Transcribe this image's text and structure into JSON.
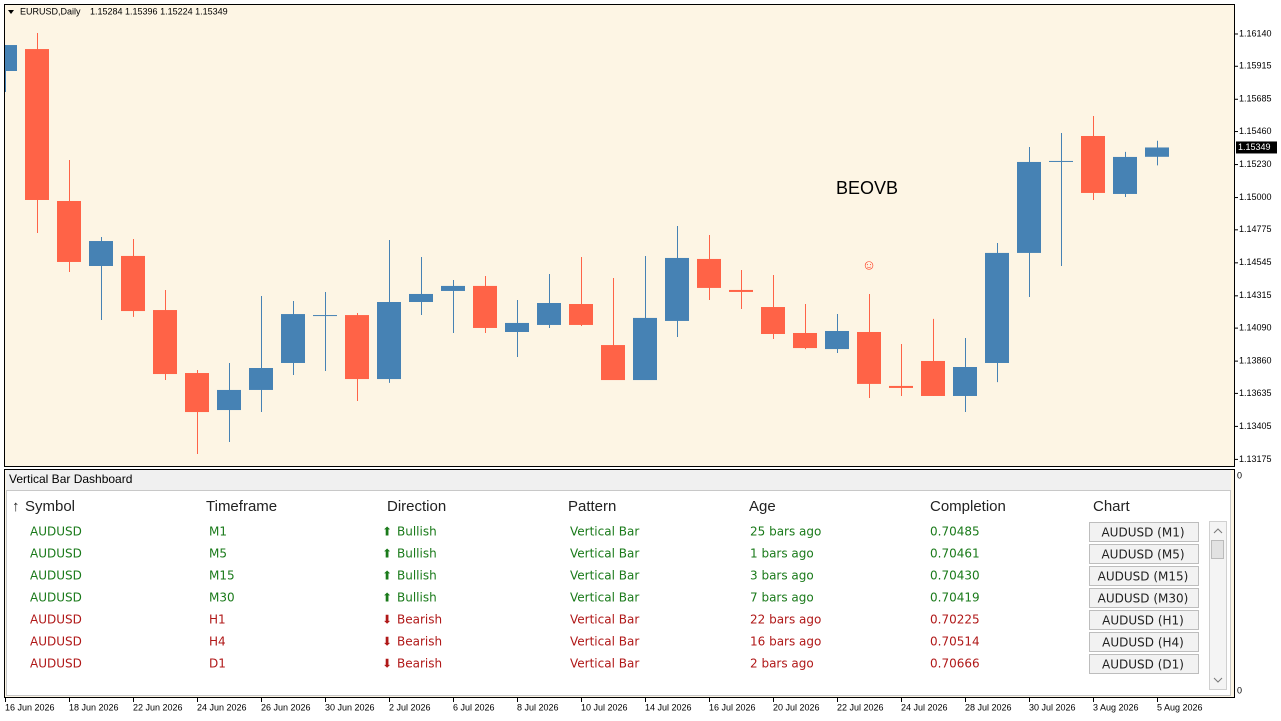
{
  "chart_data": {
    "type": "candlestick",
    "title": "EURUSD,Daily",
    "ohlc_label": "1.15284 1.15396 1.15224 1.15349",
    "annotation": "BEOVB",
    "marker_annotation": "☺",
    "marker_index": 27,
    "last_price_label": "1.15349",
    "up_color": "#4682b4",
    "down_color": "#ff6347",
    "marker_color": "#ff3b1f",
    "categories": [
      "16 Jun 2026",
      null,
      "18 Jun 2026",
      null,
      "22 Jun 2026",
      null,
      "24 Jun 2026",
      null,
      "26 Jun 2026",
      null,
      "30 Jun 2026",
      null,
      "2 Jul 2026",
      null,
      "6 Jul 2026",
      null,
      "8 Jul 2026",
      null,
      "10 Jul 2026",
      null,
      "14 Jul 2026",
      null,
      "16 Jul 2026",
      null,
      "20 Jul 2026",
      null,
      "22 Jul 2026",
      null,
      "24 Jul 2026",
      null,
      "28 Jul 2026",
      null,
      "30 Jul 2026",
      null,
      "3 Aug 2026",
      null,
      "5 Aug 2026"
    ],
    "open": [
      1.15882,
      1.16035,
      1.14976,
      1.14523,
      1.14593,
      1.14216,
      1.13777,
      1.13519,
      1.13659,
      1.13847,
      1.14175,
      1.14181,
      1.13735,
      1.14272,
      1.14349,
      1.14384,
      1.14063,
      1.14112,
      1.14258,
      1.13972,
      1.13728,
      1.1414,
      1.14572,
      1.14356,
      1.14237,
      1.14056,
      1.13944,
      1.14063,
      1.13687,
      1.13861,
      1.13617,
      1.13847,
      1.14614,
      1.15248,
      1.15429,
      1.15025,
      1.15284
    ],
    "high": [
      1.16063,
      1.16147,
      1.15262,
      1.14725,
      1.14711,
      1.14356,
      1.13798,
      1.13847,
      1.14314,
      1.14279,
      1.14342,
      1.14195,
      1.14704,
      1.14586,
      1.14425,
      1.14453,
      1.14286,
      1.14467,
      1.14586,
      1.14439,
      1.14593,
      1.14802,
      1.14739,
      1.14495,
      1.1446,
      1.14258,
      1.14188,
      1.14328,
      1.13979,
      1.14154,
      1.14021,
      1.14683,
      1.15352,
      1.1545,
      1.15568,
      1.15318,
      1.15396
    ],
    "low": [
      1.15736,
      1.14753,
      1.14481,
      1.14147,
      1.14168,
      1.13728,
      1.13213,
      1.13296,
      1.13505,
      1.13763,
      1.13791,
      1.13582,
      1.13708,
      1.14181,
      1.14056,
      1.14056,
      1.13889,
      1.14091,
      1.14105,
      1.13728,
      1.13728,
      1.14028,
      1.14286,
      1.14223,
      1.14014,
      1.13944,
      1.13917,
      1.13603,
      1.13617,
      1.13617,
      1.13505,
      1.13714,
      1.14307,
      1.14523,
      1.14983,
      1.15004,
      1.15224
    ],
    "close": [
      1.16063,
      1.14983,
      1.14551,
      1.14697,
      1.14209,
      1.1377,
      1.13505,
      1.13659,
      1.13812,
      1.14188,
      1.14181,
      1.13735,
      1.14272,
      1.14328,
      1.14384,
      1.14091,
      1.14126,
      1.14265,
      1.14112,
      1.13728,
      1.14161,
      1.14579,
      1.1437,
      1.14342,
      1.14049,
      1.13951,
      1.1407,
      1.13701,
      1.13673,
      1.13617,
      1.13819,
      1.14614,
      1.15248,
      1.15255,
      1.15032,
      1.15283,
      1.15349
    ],
    "ylim": [
      1.13129,
      1.16342
    ],
    "yticks": [
      {
        "value": 1.1614,
        "label": "1.16140"
      },
      {
        "value": 1.15915,
        "label": "1.15915"
      },
      {
        "value": 1.15685,
        "label": "1.15685"
      },
      {
        "value": 1.1546,
        "label": "1.15460"
      },
      {
        "value": 1.1523,
        "label": "1.15230"
      },
      {
        "value": 1.15,
        "label": "1.15000"
      },
      {
        "value": 1.14775,
        "label": "1.14775"
      },
      {
        "value": 1.14545,
        "label": "1.14545"
      },
      {
        "value": 1.14315,
        "label": "1.14315"
      },
      {
        "value": 1.1409,
        "label": "1.14090"
      },
      {
        "value": 1.1386,
        "label": "1.13860"
      },
      {
        "value": 1.13635,
        "label": "1.13635"
      },
      {
        "value": 1.13405,
        "label": "1.13405"
      },
      {
        "value": 1.13175,
        "label": "1.13175"
      }
    ],
    "grid": false
  },
  "subwindow_axis_labels": [
    "0",
    "0"
  ],
  "dashboard": {
    "title": "Vertical Bar Dashboard",
    "sort_indicator": "↑",
    "columns": [
      "Symbol",
      "Timeframe",
      "Direction",
      "Pattern",
      "Age",
      "Completion",
      "Chart"
    ],
    "rows": [
      {
        "color": "#1a7a1a",
        "icon": "⬆",
        "symbol": "AUDUSD",
        "timeframe": "M1",
        "direction": "Bullish",
        "pattern": "Vertical Bar",
        "age": "25 bars ago",
        "completion": "0.70485",
        "chart": "AUDUSD (M1)"
      },
      {
        "color": "#1a7a1a",
        "icon": "⬆",
        "symbol": "AUDUSD",
        "timeframe": "M5",
        "direction": "Bullish",
        "pattern": "Vertical Bar",
        "age": "1 bars ago",
        "completion": "0.70461",
        "chart": "AUDUSD (M5)"
      },
      {
        "color": "#1a7a1a",
        "icon": "⬆",
        "symbol": "AUDUSD",
        "timeframe": "M15",
        "direction": "Bullish",
        "pattern": "Vertical Bar",
        "age": "3 bars ago",
        "completion": "0.70430",
        "chart": "AUDUSD (M15)"
      },
      {
        "color": "#1a7a1a",
        "icon": "⬆",
        "symbol": "AUDUSD",
        "timeframe": "M30",
        "direction": "Bullish",
        "pattern": "Vertical Bar",
        "age": "7 bars ago",
        "completion": "0.70419",
        "chart": "AUDUSD (M30)"
      },
      {
        "color": "#b01818",
        "icon": "⬇",
        "symbol": "AUDUSD",
        "timeframe": "H1",
        "direction": "Bearish",
        "pattern": "Vertical Bar",
        "age": "22 bars ago",
        "completion": "0.70225",
        "chart": "AUDUSD (H1)"
      },
      {
        "color": "#b01818",
        "icon": "⬇",
        "symbol": "AUDUSD",
        "timeframe": "H4",
        "direction": "Bearish",
        "pattern": "Vertical Bar",
        "age": "16 bars ago",
        "completion": "0.70514",
        "chart": "AUDUSD (H4)"
      },
      {
        "color": "#b01818",
        "icon": "⬇",
        "symbol": "AUDUSD",
        "timeframe": "D1",
        "direction": "Bearish",
        "pattern": "Vertical Bar",
        "age": "2 bars ago",
        "completion": "0.70666",
        "chart": "AUDUSD (D1)"
      }
    ]
  }
}
